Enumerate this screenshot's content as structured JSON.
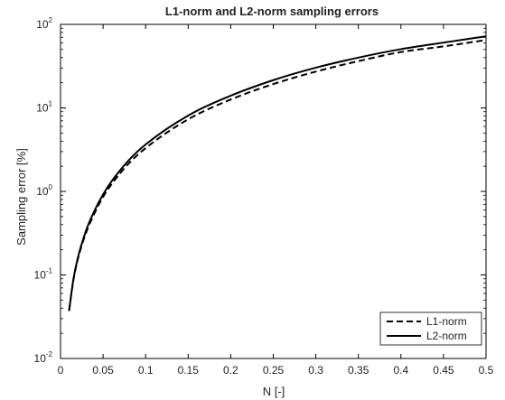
{
  "chart_data": {
    "type": "line",
    "title": "L1-norm and L2-norm sampling errors",
    "xlabel": "N [-]",
    "ylabel": "Sampling error [%]",
    "xlim": [
      0,
      0.5
    ],
    "ylim": [
      0.01,
      100
    ],
    "yscale": "log",
    "grid": false,
    "legend_position": "bottom-right",
    "x_ticks": [
      "0",
      "0.05",
      "0.1",
      "0.15",
      "0.2",
      "0.25",
      "0.3",
      "0.35",
      "0.4",
      "0.45",
      "0.5"
    ],
    "y_ticks": [
      {
        "base": "10",
        "exp": "-2"
      },
      {
        "base": "10",
        "exp": "-1"
      },
      {
        "base": "10",
        "exp": "0"
      },
      {
        "base": "10",
        "exp": "1"
      },
      {
        "base": "10",
        "exp": "2"
      }
    ],
    "series": [
      {
        "name": "L1-norm",
        "style": "dashed",
        "color": "#000000",
        "x": [
          0.01,
          0.015,
          0.02,
          0.03,
          0.04,
          0.05,
          0.06,
          0.08,
          0.1,
          0.15,
          0.2,
          0.25,
          0.3,
          0.35,
          0.4,
          0.45,
          0.5
        ],
        "y": [
          0.037,
          0.085,
          0.15,
          0.32,
          0.55,
          0.86,
          1.22,
          2.15,
          3.3,
          7.3,
          12.6,
          19.3,
          27.2,
          36.3,
          46.6,
          54.5,
          65.0
        ]
      },
      {
        "name": "L2-norm",
        "style": "solid",
        "color": "#000000",
        "x": [
          0.01,
          0.015,
          0.02,
          0.03,
          0.04,
          0.05,
          0.06,
          0.08,
          0.1,
          0.15,
          0.2,
          0.25,
          0.3,
          0.35,
          0.4,
          0.45,
          0.5
        ],
        "y": [
          0.037,
          0.087,
          0.155,
          0.34,
          0.59,
          0.92,
          1.32,
          2.35,
          3.65,
          8.1,
          14.0,
          21.5,
          30.3,
          40.0,
          50.5,
          60.5,
          72.0
        ]
      }
    ]
  }
}
